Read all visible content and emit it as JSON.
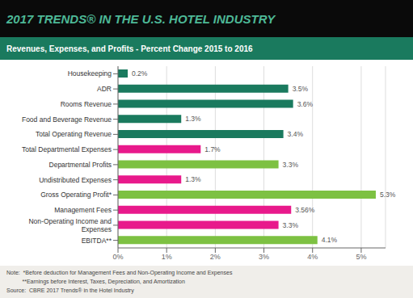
{
  "chart_data": {
    "type": "bar",
    "orientation": "horizontal",
    "title": "2017 TRENDS® IN THE U.S. HOTEL INDUSTRY",
    "subtitle": "Revenues, Expenses, and Profits - Percent Change 2015 to 2016",
    "annotations": [
      "Note:  *Before deduction for Management Fees and Non-Operating Income and Expenses",
      "          **Earnings before Interest, Taxes, Depreciation, and Amortization",
      "Source:  CBRE 2017 Trends® in the Hotel Industry"
    ],
    "categories": [
      "Housekeeping",
      "ADR",
      "Rooms Revenue",
      "Food and Beverage Revenue",
      "Total Operating Revenue",
      "Total Departmental Expenses",
      "Departmental Profits",
      "Undistributed Expenses",
      "Gross Operating Profit*",
      "Management Fees",
      "Non-Operating Income and\nExpenses",
      "EBITDA**"
    ],
    "values": [
      0.2,
      3.5,
      3.6,
      1.3,
      3.4,
      1.7,
      3.3,
      1.3,
      5.3,
      3.56,
      3.3,
      4.1
    ],
    "value_labels": [
      "0.2%",
      "3.5%",
      "3.6%",
      "1.3%",
      "3.4%",
      "1.7%",
      "3.3%",
      "1.3%",
      "5.3%",
      "3.56%",
      "3.3%",
      "4.1%"
    ],
    "data_labels": true,
    "colors": [
      "#1a7a5e",
      "#1a7a5e",
      "#1a7a5e",
      "#1a7a5e",
      "#1a7a5e",
      "#e8198b",
      "#7dc142",
      "#e8198b",
      "#7dc142",
      "#e8198b",
      "#e8198b",
      "#7dc142"
    ],
    "xlim": [
      0,
      5.5
    ],
    "xticks": [
      {
        "value": 0,
        "label": "0%"
      },
      {
        "value": 1,
        "label": "1%"
      },
      {
        "value": 2,
        "label": "2%"
      },
      {
        "value": 3,
        "label": "3%"
      },
      {
        "value": 4,
        "label": "4%"
      },
      {
        "value": 5,
        "label": "5%"
      }
    ],
    "grid": true
  }
}
